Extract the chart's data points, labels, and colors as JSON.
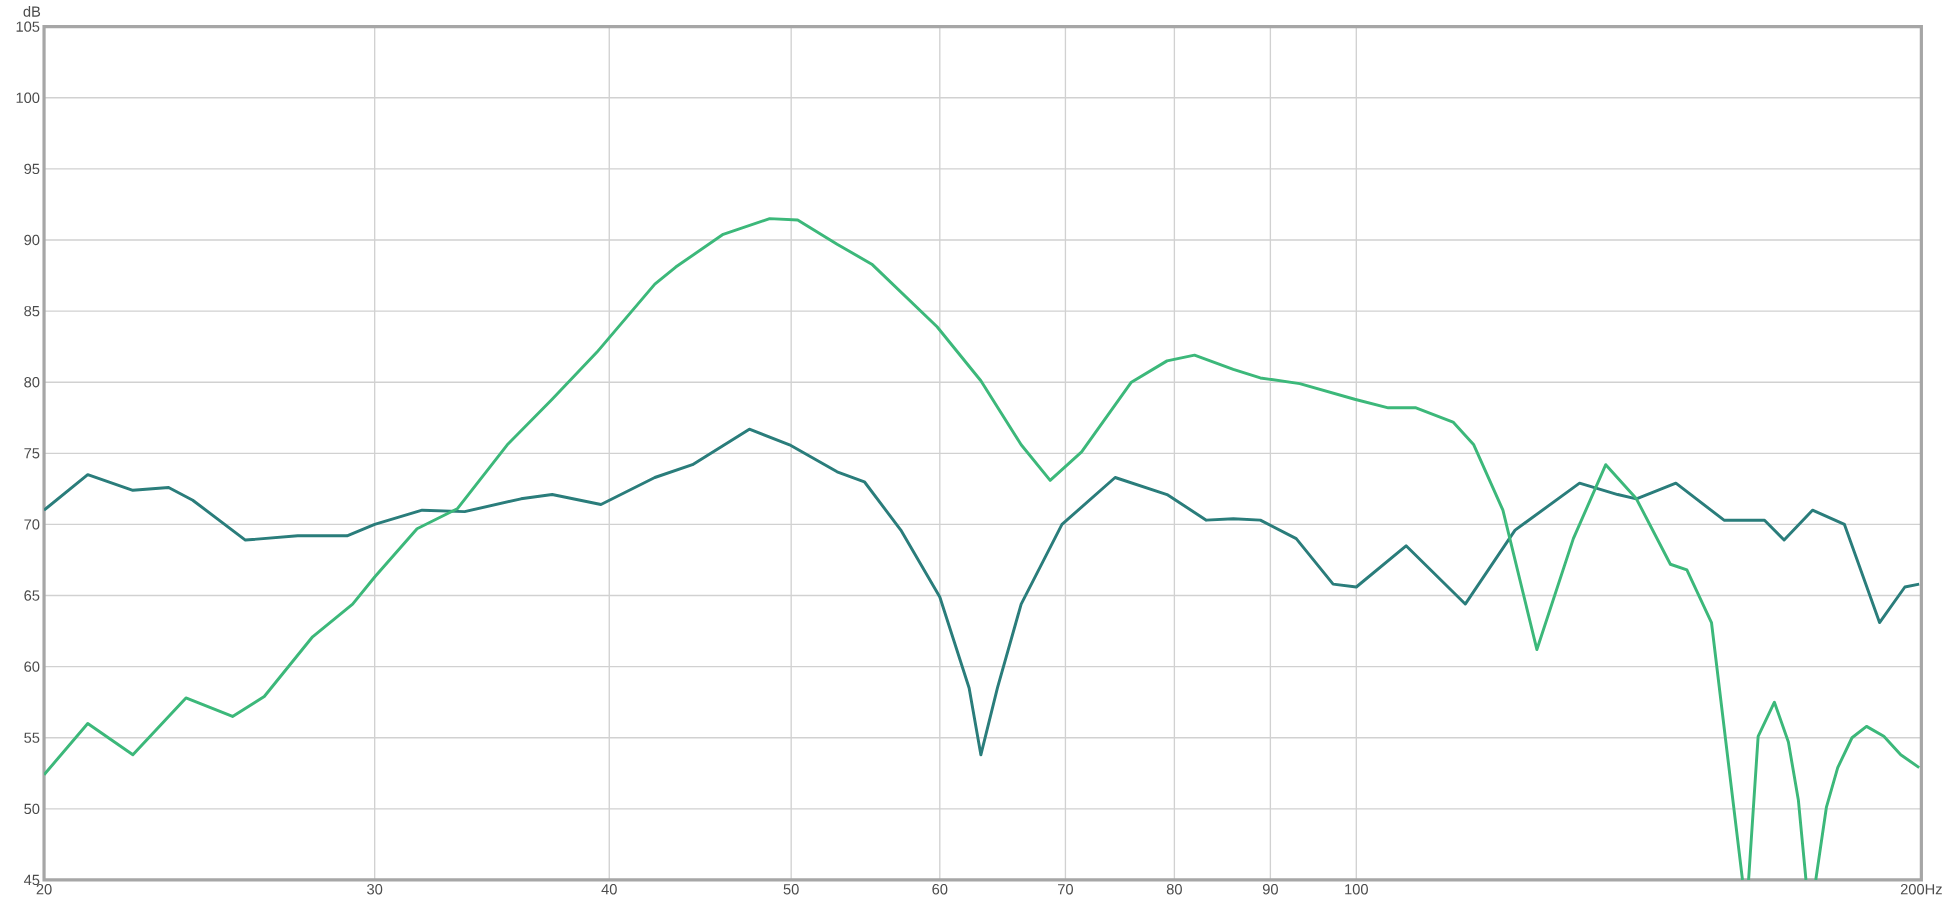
{
  "chart_data": {
    "type": "line",
    "ylabel": "dB",
    "log": "x",
    "xlim": [
      20,
      200
    ],
    "xticks": [
      20,
      30,
      40,
      50,
      60,
      70,
      80,
      90,
      100,
      {
        "value": 200,
        "label": "200Hz"
      }
    ],
    "ylim": [
      45,
      105
    ],
    "yticks": [
      45,
      50,
      55,
      60,
      65,
      70,
      75,
      80,
      85,
      90,
      95,
      100,
      105
    ],
    "grid": true,
    "marker": "none",
    "line_style": "solid",
    "series": [
      {
        "color": "#2a7d7b",
        "x": [
          20,
          21.1,
          22.3,
          23.3,
          24.0,
          25.6,
          27.3,
          29.0,
          30,
          31.8,
          33.5,
          35.9,
          37.3,
          39.6,
          42.3,
          44.3,
          47.5,
          49.9,
          52.9,
          54.7,
          57.2,
          60,
          62.2,
          63.1,
          64.4,
          66.3,
          69.7,
          74.4,
          79.3,
          83.2,
          86.0,
          88.9,
          92.9,
          97.2,
          100,
          106.3,
          114.3,
          121.5,
          131.5,
          137.8,
          141,
          148,
          157,
          165,
          169,
          175,
          182,
          190,
          196,
          199.5
        ],
        "values": [
          71.0,
          73.5,
          72.4,
          72.6,
          71.7,
          68.9,
          69.2,
          69.2,
          70.0,
          71.0,
          70.9,
          71.8,
          72.1,
          71.4,
          73.3,
          74.2,
          76.7,
          75.6,
          73.7,
          73.0,
          69.6,
          64.9,
          58.5,
          53.8,
          58.5,
          64.4,
          70.0,
          73.3,
          72.1,
          70.3,
          70.4,
          70.3,
          69.0,
          65.8,
          65.6,
          68.5,
          64.4,
          69.6,
          72.9,
          72.1,
          71.8,
          72.9,
          70.3,
          70.3,
          68.9,
          71.0,
          70.0,
          63.1,
          65.6,
          65.8
        ]
      },
      {
        "color": "#3cb87a",
        "x": [
          20,
          21.1,
          22.3,
          23.8,
          25.2,
          26.2,
          27.8,
          29.2,
          30,
          31.6,
          33.2,
          35.3,
          37.3,
          39.4,
          42.3,
          43.4,
          46.0,
          48.7,
          50.4,
          52.9,
          55.2,
          59.8,
          63.1,
          66.3,
          68.7,
          71.4,
          75.9,
          79.3,
          82.0,
          86.0,
          88.9,
          93.3,
          99.8,
          104,
          107.6,
          112.6,
          115.5,
          119.7,
          124.8,
          130.5,
          135.8,
          141,
          147,
          150,
          154.6,
          160.6,
          161.2,
          161.8,
          163.7,
          167,
          169.9,
          172,
          173.6,
          174.6,
          175.7,
          178,
          180.5,
          183.7,
          187,
          191,
          195,
          199.5
        ],
        "values": [
          52.4,
          56.0,
          53.8,
          57.8,
          56.5,
          57.9,
          62.1,
          64.4,
          66.3,
          69.7,
          71.1,
          75.6,
          78.8,
          82.1,
          86.9,
          88.1,
          90.4,
          91.5,
          91.4,
          89.7,
          88.3,
          83.9,
          80.1,
          75.6,
          73.1,
          75.1,
          80.0,
          81.5,
          81.9,
          80.9,
          80.3,
          79.9,
          78.8,
          78.2,
          78.2,
          77.2,
          75.6,
          71.0,
          61.2,
          69.0,
          74.2,
          71.8,
          67.2,
          66.8,
          63.1,
          45,
          null,
          45,
          55.1,
          57.5,
          54.7,
          50.6,
          45,
          null,
          45,
          50.1,
          52.9,
          55.0,
          55.8,
          55.1,
          53.8,
          52.9
        ]
      }
    ]
  }
}
